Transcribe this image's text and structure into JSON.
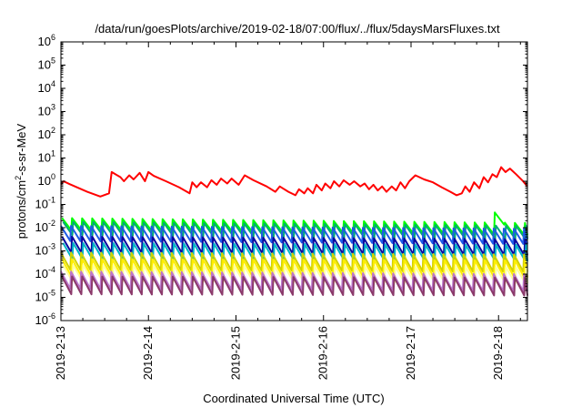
{
  "chart_data": {
    "type": "line",
    "title": "/data/run/goesPlots/archive/2019-02-18/07:00/flux/../flux/5daysMarsFluxes.txt",
    "xlabel": "Coordinated Universal Time (UTC)",
    "ylabel": "protons/cm2-s-sr-MeV",
    "yscale": "log",
    "ylim": [
      1e-06,
      1000000.0
    ],
    "x_tick_labels": [
      "2019-2-13",
      "2019-2-14",
      "2019-2-15",
      "2019-2-16",
      "2019-2-17",
      "2019-2-18"
    ],
    "y_tick_exponents": [
      -6,
      -5,
      -4,
      -3,
      -2,
      -1,
      0,
      1,
      2,
      3,
      4,
      5,
      6
    ],
    "x_range_days": [
      0,
      5.33
    ],
    "grid": false,
    "legend": "none",
    "series": [
      {
        "color": "#ff0000",
        "points": [
          [
            0,
            0.75
          ],
          [
            0.03,
            1.0
          ],
          [
            0.1,
            0.75
          ],
          [
            0.3,
            0.35
          ],
          [
            0.45,
            0.22
          ],
          [
            0.55,
            0.3
          ],
          [
            0.58,
            2.5
          ],
          [
            0.68,
            1.5
          ],
          [
            0.72,
            1.0
          ],
          [
            0.78,
            1.8
          ],
          [
            0.83,
            1.2
          ],
          [
            0.9,
            2.3
          ],
          [
            0.96,
            1.0
          ],
          [
            1.0,
            2.5
          ],
          [
            1.06,
            1.7
          ],
          [
            1.2,
            1.0
          ],
          [
            1.35,
            0.55
          ],
          [
            1.47,
            0.3
          ],
          [
            1.5,
            0.9
          ],
          [
            1.55,
            0.55
          ],
          [
            1.6,
            0.9
          ],
          [
            1.67,
            0.55
          ],
          [
            1.72,
            1.1
          ],
          [
            1.78,
            0.7
          ],
          [
            1.83,
            1.3
          ],
          [
            1.9,
            0.8
          ],
          [
            1.95,
            1.3
          ],
          [
            2.03,
            0.7
          ],
          [
            2.1,
            1.8
          ],
          [
            2.2,
            1.1
          ],
          [
            2.35,
            0.6
          ],
          [
            2.45,
            0.35
          ],
          [
            2.5,
            0.6
          ],
          [
            2.6,
            0.35
          ],
          [
            2.68,
            0.25
          ],
          [
            2.72,
            0.45
          ],
          [
            2.78,
            0.3
          ],
          [
            2.82,
            0.5
          ],
          [
            2.88,
            0.3
          ],
          [
            2.92,
            0.7
          ],
          [
            2.98,
            0.4
          ],
          [
            3.02,
            0.8
          ],
          [
            3.08,
            0.5
          ],
          [
            3.12,
            1.0
          ],
          [
            3.18,
            0.6
          ],
          [
            3.23,
            1.1
          ],
          [
            3.3,
            0.7
          ],
          [
            3.35,
            1.0
          ],
          [
            3.42,
            0.6
          ],
          [
            3.47,
            0.8
          ],
          [
            3.52,
            0.45
          ],
          [
            3.57,
            0.7
          ],
          [
            3.62,
            0.4
          ],
          [
            3.67,
            0.6
          ],
          [
            3.72,
            0.35
          ],
          [
            3.78,
            0.6
          ],
          [
            3.83,
            0.4
          ],
          [
            3.88,
            0.9
          ],
          [
            3.93,
            0.5
          ],
          [
            3.98,
            1.0
          ],
          [
            4.05,
            1.8
          ],
          [
            4.15,
            1.2
          ],
          [
            4.25,
            0.9
          ],
          [
            4.35,
            0.55
          ],
          [
            4.45,
            0.35
          ],
          [
            4.52,
            0.25
          ],
          [
            4.58,
            0.3
          ],
          [
            4.62,
            0.6
          ],
          [
            4.67,
            0.35
          ],
          [
            4.72,
            0.9
          ],
          [
            4.78,
            0.5
          ],
          [
            4.83,
            1.5
          ],
          [
            4.88,
            0.9
          ],
          [
            4.93,
            2.0
          ],
          [
            4.98,
            1.5
          ],
          [
            5.03,
            4.0
          ],
          [
            5.08,
            2.5
          ],
          [
            5.13,
            3.5
          ],
          [
            5.2,
            2.0
          ],
          [
            5.27,
            1.1
          ],
          [
            5.33,
            0.6
          ]
        ]
      },
      {
        "color": "#00ff00",
        "points": [
          [
            0,
            0.026
          ],
          [
            5.33,
            0.016
          ]
        ],
        "sawtooth": {
          "period": 0.115,
          "min_ratio": 0.3
        },
        "peak_at": [
          [
            4.98,
            0.045
          ]
        ]
      },
      {
        "color": "#00aa77",
        "points": [
          [
            0,
            0.018
          ],
          [
            5.33,
            0.012
          ]
        ],
        "sawtooth": {
          "period": 0.115,
          "min_ratio": 0.27
        }
      },
      {
        "color": "#1e5ae6",
        "points": [
          [
            0,
            0.012
          ],
          [
            5.33,
            0.009
          ]
        ],
        "sawtooth": {
          "period": 0.115,
          "min_ratio": 0.22
        }
      },
      {
        "color": "#0a0aa0",
        "points": [
          [
            0,
            0.0042
          ],
          [
            5.33,
            0.0032
          ]
        ],
        "sawtooth": {
          "period": 0.115,
          "min_ratio": 0.2
        }
      },
      {
        "color": "#00b4c8",
        "points": [
          [
            0,
            0.0022
          ],
          [
            5.33,
            0.0018
          ]
        ],
        "sawtooth": {
          "period": 0.115,
          "min_ratio": 0.2
        }
      },
      {
        "color": "#d2d200",
        "points": [
          [
            0,
            0.00085
          ],
          [
            5.33,
            0.0007
          ]
        ],
        "sawtooth": {
          "period": 0.115,
          "min_ratio": 0.18
        }
      },
      {
        "color": "#ffee00",
        "points": [
          [
            0,
            0.00045
          ],
          [
            5.33,
            0.0004
          ]
        ],
        "sawtooth": {
          "period": 0.115,
          "min_ratio": 0.18
        }
      },
      {
        "color": "#ffff99",
        "points": [
          [
            0,
            0.00025
          ],
          [
            5.33,
            0.0002
          ]
        ],
        "sawtooth": {
          "period": 0.115,
          "min_ratio": 0.2
        }
      },
      {
        "color": "#bb77cc",
        "points": [
          [
            0,
            0.00013
          ],
          [
            5.33,
            0.0001
          ]
        ],
        "sawtooth": {
          "period": 0.115,
          "min_ratio": 0.18
        }
      },
      {
        "color": "#8b3a6b",
        "points": [
          [
            0,
            8e-05
          ],
          [
            5.33,
            7e-05
          ]
        ],
        "sawtooth": {
          "period": 0.115,
          "min_ratio": 0.17
        }
      }
    ]
  }
}
